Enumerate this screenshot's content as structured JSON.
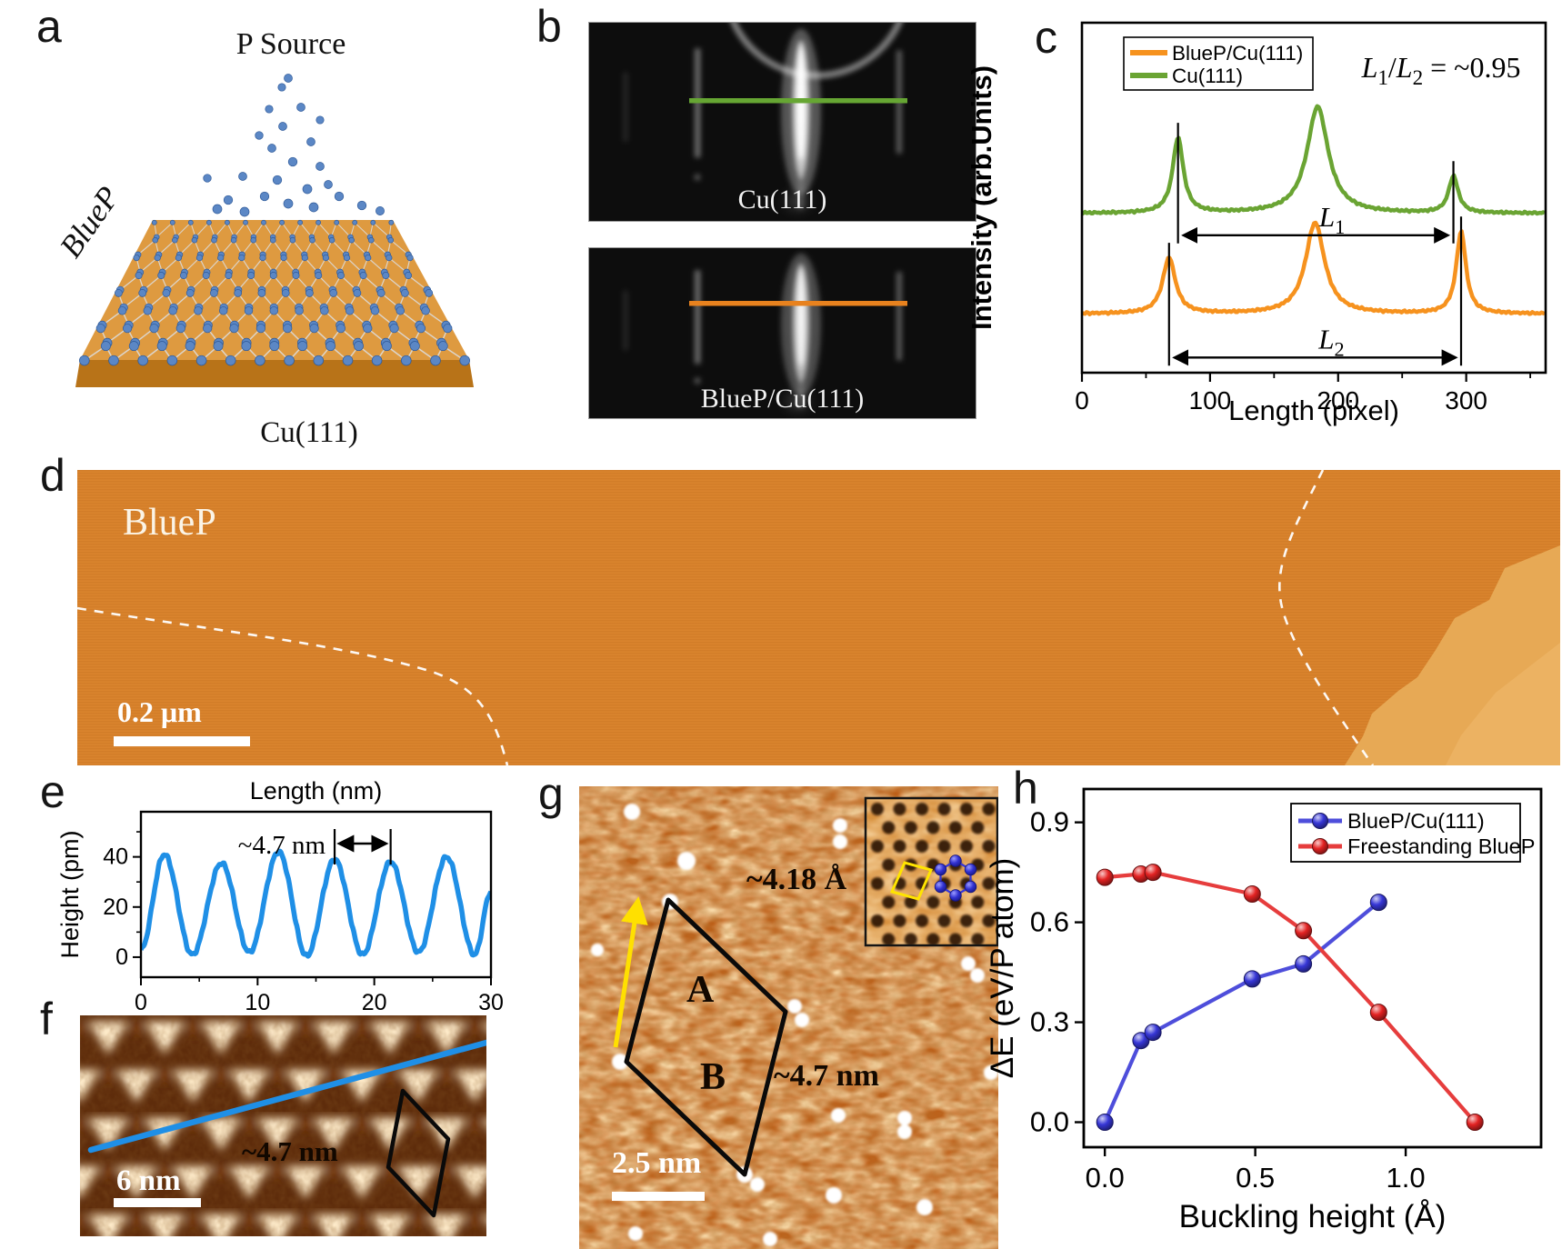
{
  "figure": {
    "background": "#ffffff",
    "panels": {
      "a": {
        "label": "a",
        "source_label": "P Source",
        "film_label": "BlueP",
        "substrate_label": "Cu(111)",
        "atom_color": "#5b87c5",
        "slab_top_color": "#de9a40",
        "slab_front_color": "#b87318"
      },
      "b": {
        "label": "b",
        "images": [
          {
            "caption": "Cu(111)",
            "line_color": "#66a633"
          },
          {
            "caption": "BlueP/Cu(111)",
            "line_color": "#e8821e"
          }
        ]
      },
      "c": {
        "label": "c"
      },
      "d": {
        "label": "d",
        "region_label": "BlueP",
        "scalebar_label": "0.2 μm",
        "terrace_color": "#d9822b",
        "upper_terrace_color": "#e7a955"
      },
      "e": {
        "label": "e"
      },
      "f": {
        "label": "f",
        "annotation": "~4.7 nm",
        "scalebar_label": "6 nm",
        "line_color": "#1f8fe6"
      },
      "g": {
        "label": "g",
        "lattice_annotation": "~4.18 Å",
        "moire_annotation": "~4.7 nm",
        "domain_a_label": "A",
        "domain_b_label": "B",
        "scalebar_label": "2.5 nm",
        "arrow_color": "#ffe000"
      },
      "h": {
        "label": "h"
      }
    }
  },
  "chart_data": [
    {
      "id": "c-leed-line-profiles",
      "type": "line",
      "title": "",
      "xlabel": "Length (pixel)",
      "ylabel": "Intensity (arb.Units)",
      "xlim": [
        0,
        362
      ],
      "xticks": [
        0,
        100,
        200,
        300
      ],
      "xminorticks": [
        50,
        150,
        250,
        350
      ],
      "grid": false,
      "legend_position": "top-left",
      "legend_order": [
        "BlueP/Cu(111)",
        "Cu(111)"
      ],
      "ratio_annotation": "L1/L2 = ~0.95",
      "series": [
        {
          "name": "Cu(111)",
          "color": "#6aa433",
          "baseline_frac": 0.545,
          "peaks": [
            {
              "x": 75,
              "height_frac": 0.215,
              "width": 5
            },
            {
              "x": 184,
              "height_frac": 0.305,
              "width": 10
            },
            {
              "x": 290,
              "height_frac": 0.105,
              "width": 4.5
            }
          ],
          "span": {
            "from": 75,
            "to": 290,
            "label": "L1"
          }
        },
        {
          "name": "BlueP/Cu(111)",
          "color": "#f6921e",
          "baseline_frac": 0.832,
          "peaks": [
            {
              "x": 68,
              "height_frac": 0.16,
              "width": 6
            },
            {
              "x": 182,
              "height_frac": 0.26,
              "width": 9
            },
            {
              "x": 296,
              "height_frac": 0.235,
              "width": 4.5
            }
          ],
          "span": {
            "from": 68,
            "to": 296,
            "label": "L2"
          }
        }
      ]
    },
    {
      "id": "e-height-profile",
      "type": "line",
      "xlabel_top": "Length (nm)",
      "ylabel": "Height (pm)",
      "xlim": [
        0,
        30
      ],
      "ylim": [
        -8,
        58
      ],
      "xticks": [
        0,
        10,
        20,
        30
      ],
      "xminorticks": [
        5,
        15,
        25
      ],
      "yticks": [
        0,
        20,
        40
      ],
      "yminorticks": [
        10,
        30,
        50
      ],
      "grid": false,
      "series": [
        {
          "name": "height profile",
          "color": "#1f8fe6",
          "extrema": [
            [
              0,
              3
            ],
            [
              2.0,
              41
            ],
            [
              4.4,
              1
            ],
            [
              6.9,
              37.5
            ],
            [
              9.3,
              2
            ],
            [
              11.8,
              42
            ],
            [
              14.2,
              0.5
            ],
            [
              16.6,
              39
            ],
            [
              19.0,
              1
            ],
            [
              21.4,
              38
            ],
            [
              23.8,
              2
            ],
            [
              26.2,
              40
            ],
            [
              28.6,
              1
            ],
            [
              30,
              26
            ]
          ]
        }
      ],
      "period_annotation": {
        "label": "~4.7 nm",
        "from_x": 16.6,
        "to_x": 21.4
      }
    },
    {
      "id": "h-buckling-energy",
      "type": "scatter-line",
      "xlabel": "Buckling height (Å)",
      "ylabel": "ΔE (eV/P atom)",
      "xlim": [
        -0.07,
        1.45
      ],
      "ylim": [
        -0.075,
        1.0
      ],
      "xticks": [
        0.0,
        0.5,
        1.0
      ],
      "yticks": [
        0.0,
        0.3,
        0.6,
        0.9
      ],
      "tick_decimals": 1,
      "grid": false,
      "legend_position": "top-right",
      "series": [
        {
          "name": "BlueP/Cu(111)",
          "color": "#3636d6",
          "points": [
            [
              0.0,
              0.0
            ],
            [
              0.12,
              0.245
            ],
            [
              0.16,
              0.27
            ],
            [
              0.49,
              0.43
            ],
            [
              0.66,
              0.475
            ],
            [
              0.91,
              0.66
            ]
          ]
        },
        {
          "name": "Freestanding BlueP",
          "color": "#e32222",
          "points": [
            [
              0.0,
              0.735
            ],
            [
              0.12,
              0.745
            ],
            [
              0.16,
              0.75
            ],
            [
              0.49,
              0.685
            ],
            [
              0.66,
              0.575
            ],
            [
              0.91,
              0.33
            ],
            [
              1.23,
              0.0
            ]
          ]
        }
      ]
    }
  ]
}
